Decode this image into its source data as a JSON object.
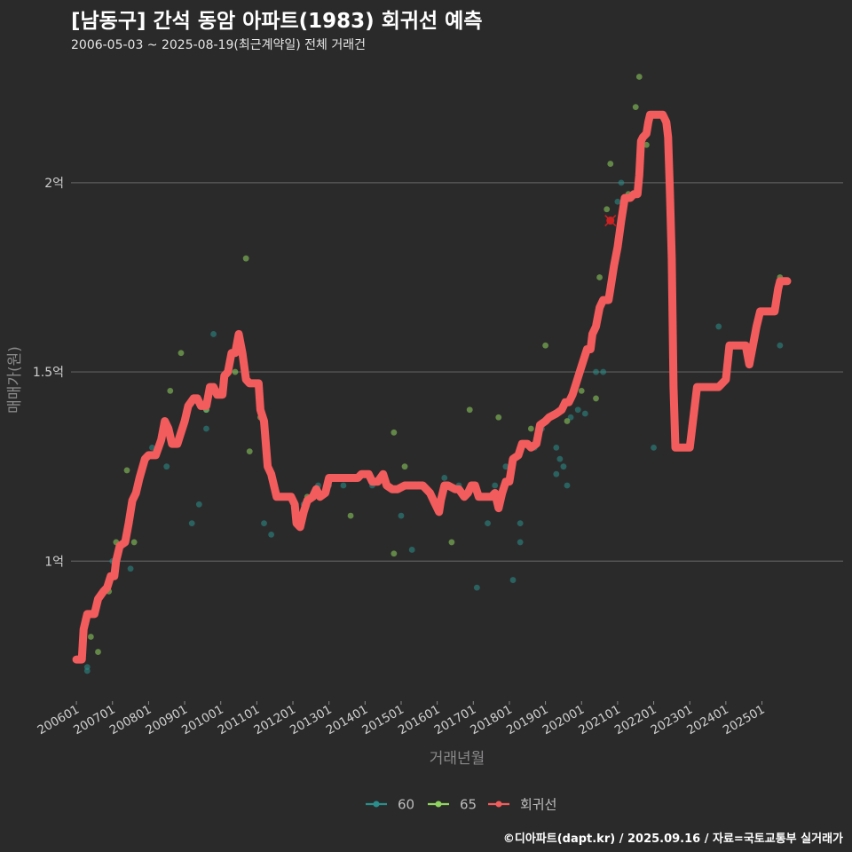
{
  "title": "[남동구] 간석 동암 아파트(1983) 회귀선 예측",
  "subtitle": "2006-05-03 ~ 2025-08-19(최근계약일) 전체 거래건",
  "footer": "©디아파트(dapt.kr) / 2025.09.16 / 자료=국토교통부 실거래가",
  "chart_data": {
    "type": "scatter",
    "xlabel": "거래년월",
    "ylabel": "매매가(원)",
    "x_ticks": [
      "200601",
      "200701",
      "200801",
      "200901",
      "201001",
      "201101",
      "201201",
      "201301",
      "201401",
      "201501",
      "201601",
      "201701",
      "201801",
      "201901",
      "202001",
      "202101",
      "202201",
      "202301",
      "202401",
      "202501"
    ],
    "y_ticks": [
      {
        "value": 1.0,
        "label": "1억"
      },
      {
        "value": 1.5,
        "label": "1.5억"
      },
      {
        "value": 2.0,
        "label": "2억"
      }
    ],
    "xlim": [
      2005.85,
      2027.25
    ],
    "ylim": [
      0.63,
      2.3
    ],
    "grid": true,
    "legend_position": "bottom",
    "colors": {
      "s60": "#2a8f8c",
      "s65": "#8fd45f",
      "regression": "#f25c5c",
      "grid": "#5e5e5e",
      "highlight": "#cc2222"
    },
    "series": [
      {
        "name": "60",
        "points": [
          [
            2006.3,
            0.72
          ],
          [
            2006.3,
            0.71
          ],
          [
            2007.0,
            1.0
          ],
          [
            2007.5,
            0.98
          ],
          [
            2008.1,
            1.3
          ],
          [
            2008.5,
            1.25
          ],
          [
            2009.2,
            1.1
          ],
          [
            2009.4,
            1.15
          ],
          [
            2009.6,
            1.35
          ],
          [
            2009.6,
            1.4
          ],
          [
            2009.8,
            1.6
          ],
          [
            2011.2,
            1.1
          ],
          [
            2011.4,
            1.07
          ],
          [
            2012.3,
            1.15
          ],
          [
            2012.7,
            1.2
          ],
          [
            2013.0,
            1.2
          ],
          [
            2013.4,
            1.2
          ],
          [
            2014.2,
            1.2
          ],
          [
            2015.0,
            1.12
          ],
          [
            2015.1,
            1.2
          ],
          [
            2015.3,
            1.03
          ],
          [
            2015.8,
            1.18
          ],
          [
            2016.2,
            1.22
          ],
          [
            2016.6,
            1.2
          ],
          [
            2017.1,
            0.93
          ],
          [
            2017.4,
            1.1
          ],
          [
            2017.6,
            1.2
          ],
          [
            2017.9,
            1.25
          ],
          [
            2018.1,
            0.95
          ],
          [
            2018.3,
            1.05
          ],
          [
            2018.3,
            1.1
          ],
          [
            2018.7,
            1.3
          ],
          [
            2018.9,
            1.35
          ],
          [
            2019.3,
            1.3
          ],
          [
            2019.3,
            1.23
          ],
          [
            2019.4,
            1.27
          ],
          [
            2019.5,
            1.25
          ],
          [
            2019.6,
            1.2
          ],
          [
            2019.7,
            1.38
          ],
          [
            2019.9,
            1.4
          ],
          [
            2020.1,
            1.39
          ],
          [
            2020.4,
            1.5
          ],
          [
            2020.6,
            1.5
          ],
          [
            2021.0,
            1.95
          ],
          [
            2021.1,
            2.0
          ],
          [
            2022.0,
            1.3
          ],
          [
            2023.0,
            1.3
          ],
          [
            2023.8,
            1.62
          ],
          [
            2025.5,
            1.57
          ]
        ]
      },
      {
        "name": "65",
        "points": [
          [
            2006.4,
            0.8
          ],
          [
            2006.6,
            0.76
          ],
          [
            2006.9,
            0.92
          ],
          [
            2007.1,
            1.05
          ],
          [
            2007.4,
            1.24
          ],
          [
            2007.6,
            1.05
          ],
          [
            2008.1,
            1.28
          ],
          [
            2008.6,
            1.45
          ],
          [
            2008.9,
            1.55
          ],
          [
            2009.6,
            1.4
          ],
          [
            2009.9,
            1.45
          ],
          [
            2010.4,
            1.5
          ],
          [
            2010.7,
            1.8
          ],
          [
            2010.8,
            1.29
          ],
          [
            2011.1,
            1.38
          ],
          [
            2012.4,
            1.17
          ],
          [
            2013.6,
            1.12
          ],
          [
            2014.0,
            1.23
          ],
          [
            2014.8,
            1.02
          ],
          [
            2014.8,
            1.34
          ],
          [
            2015.1,
            1.25
          ],
          [
            2016.4,
            1.05
          ],
          [
            2016.9,
            1.4
          ],
          [
            2017.7,
            1.38
          ],
          [
            2018.6,
            1.35
          ],
          [
            2019.0,
            1.57
          ],
          [
            2019.6,
            1.37
          ],
          [
            2020.0,
            1.45
          ],
          [
            2020.3,
            1.6
          ],
          [
            2020.4,
            1.43
          ],
          [
            2020.5,
            1.75
          ],
          [
            2020.7,
            1.93
          ],
          [
            2020.8,
            2.05
          ],
          [
            2021.0,
            1.85
          ],
          [
            2021.3,
            1.97
          ],
          [
            2021.5,
            2.2
          ],
          [
            2021.6,
            2.28
          ],
          [
            2021.8,
            2.1
          ],
          [
            2025.5,
            1.75
          ]
        ]
      },
      {
        "name": "회귀선",
        "points": [
          [
            2006.0,
            0.74
          ],
          [
            2006.15,
            0.74
          ],
          [
            2006.2,
            0.82
          ],
          [
            2006.3,
            0.86
          ],
          [
            2006.5,
            0.86
          ],
          [
            2006.6,
            0.9
          ],
          [
            2006.75,
            0.92
          ],
          [
            2006.85,
            0.93
          ],
          [
            2006.95,
            0.96
          ],
          [
            2007.05,
            0.96
          ],
          [
            2007.1,
            1.0
          ],
          [
            2007.2,
            1.04
          ],
          [
            2007.35,
            1.05
          ],
          [
            2007.45,
            1.1
          ],
          [
            2007.55,
            1.16
          ],
          [
            2007.65,
            1.18
          ],
          [
            2007.75,
            1.22
          ],
          [
            2007.9,
            1.27
          ],
          [
            2008.0,
            1.28
          ],
          [
            2008.2,
            1.28
          ],
          [
            2008.35,
            1.32
          ],
          [
            2008.45,
            1.37
          ],
          [
            2008.55,
            1.35
          ],
          [
            2008.65,
            1.31
          ],
          [
            2008.8,
            1.31
          ],
          [
            2008.9,
            1.34
          ],
          [
            2009.0,
            1.37
          ],
          [
            2009.1,
            1.41
          ],
          [
            2009.25,
            1.43
          ],
          [
            2009.35,
            1.43
          ],
          [
            2009.45,
            1.41
          ],
          [
            2009.6,
            1.41
          ],
          [
            2009.7,
            1.46
          ],
          [
            2009.8,
            1.46
          ],
          [
            2009.9,
            1.44
          ],
          [
            2010.05,
            1.44
          ],
          [
            2010.1,
            1.49
          ],
          [
            2010.2,
            1.5
          ],
          [
            2010.3,
            1.55
          ],
          [
            2010.4,
            1.55
          ],
          [
            2010.5,
            1.6
          ],
          [
            2010.6,
            1.55
          ],
          [
            2010.7,
            1.48
          ],
          [
            2010.8,
            1.47
          ],
          [
            2011.05,
            1.47
          ],
          [
            2011.1,
            1.4
          ],
          [
            2011.2,
            1.37
          ],
          [
            2011.3,
            1.25
          ],
          [
            2011.4,
            1.23
          ],
          [
            2011.55,
            1.17
          ],
          [
            2011.7,
            1.17
          ],
          [
            2011.95,
            1.17
          ],
          [
            2012.05,
            1.15
          ],
          [
            2012.1,
            1.1
          ],
          [
            2012.2,
            1.09
          ],
          [
            2012.3,
            1.13
          ],
          [
            2012.4,
            1.16
          ],
          [
            2012.55,
            1.17
          ],
          [
            2012.65,
            1.19
          ],
          [
            2012.75,
            1.17
          ],
          [
            2012.9,
            1.18
          ],
          [
            2013.0,
            1.22
          ],
          [
            2013.1,
            1.22
          ],
          [
            2013.3,
            1.22
          ],
          [
            2013.6,
            1.22
          ],
          [
            2013.8,
            1.22
          ],
          [
            2013.9,
            1.23
          ],
          [
            2014.1,
            1.23
          ],
          [
            2014.2,
            1.21
          ],
          [
            2014.35,
            1.21
          ],
          [
            2014.5,
            1.23
          ],
          [
            2014.6,
            1.2
          ],
          [
            2014.75,
            1.19
          ],
          [
            2014.9,
            1.19
          ],
          [
            2015.1,
            1.2
          ],
          [
            2015.3,
            1.2
          ],
          [
            2015.6,
            1.2
          ],
          [
            2015.8,
            1.18
          ],
          [
            2015.95,
            1.15
          ],
          [
            2016.05,
            1.13
          ],
          [
            2016.1,
            1.16
          ],
          [
            2016.2,
            1.2
          ],
          [
            2016.3,
            1.2
          ],
          [
            2016.5,
            1.19
          ],
          [
            2016.6,
            1.19
          ],
          [
            2016.75,
            1.17
          ],
          [
            2016.85,
            1.18
          ],
          [
            2016.95,
            1.2
          ],
          [
            2017.05,
            1.2
          ],
          [
            2017.15,
            1.17
          ],
          [
            2017.3,
            1.17
          ],
          [
            2017.5,
            1.17
          ],
          [
            2017.6,
            1.18
          ],
          [
            2017.7,
            1.14
          ],
          [
            2017.8,
            1.18
          ],
          [
            2017.9,
            1.21
          ],
          [
            2018.0,
            1.21
          ],
          [
            2018.1,
            1.27
          ],
          [
            2018.25,
            1.28
          ],
          [
            2018.35,
            1.31
          ],
          [
            2018.5,
            1.31
          ],
          [
            2018.6,
            1.3
          ],
          [
            2018.75,
            1.31
          ],
          [
            2018.85,
            1.36
          ],
          [
            2019.0,
            1.37
          ],
          [
            2019.1,
            1.38
          ],
          [
            2019.3,
            1.39
          ],
          [
            2019.45,
            1.4
          ],
          [
            2019.55,
            1.42
          ],
          [
            2019.65,
            1.42
          ],
          [
            2019.75,
            1.44
          ],
          [
            2019.85,
            1.47
          ],
          [
            2019.95,
            1.5
          ],
          [
            2020.05,
            1.53
          ],
          [
            2020.15,
            1.56
          ],
          [
            2020.25,
            1.56
          ],
          [
            2020.3,
            1.6
          ],
          [
            2020.4,
            1.62
          ],
          [
            2020.5,
            1.67
          ],
          [
            2020.6,
            1.69
          ],
          [
            2020.75,
            1.69
          ],
          [
            2020.8,
            1.72
          ],
          [
            2020.9,
            1.78
          ],
          [
            2021.0,
            1.83
          ],
          [
            2021.1,
            1.9
          ],
          [
            2021.2,
            1.96
          ],
          [
            2021.35,
            1.96
          ],
          [
            2021.45,
            1.97
          ],
          [
            2021.55,
            1.97
          ],
          [
            2021.6,
            2.02
          ],
          [
            2021.65,
            2.11
          ],
          [
            2021.7,
            2.12
          ],
          [
            2021.8,
            2.13
          ],
          [
            2021.85,
            2.16
          ],
          [
            2021.9,
            2.18
          ],
          [
            2022.25,
            2.18
          ],
          [
            2022.35,
            2.16
          ],
          [
            2022.4,
            2.12
          ],
          [
            2022.45,
            1.97
          ],
          [
            2022.5,
            1.8
          ],
          [
            2022.55,
            1.46
          ],
          [
            2022.6,
            1.3
          ],
          [
            2023.0,
            1.3
          ],
          [
            2023.1,
            1.38
          ],
          [
            2023.2,
            1.46
          ],
          [
            2023.5,
            1.46
          ],
          [
            2023.8,
            1.46
          ],
          [
            2024.0,
            1.48
          ],
          [
            2024.1,
            1.57
          ],
          [
            2024.3,
            1.57
          ],
          [
            2024.55,
            1.57
          ],
          [
            2024.65,
            1.52
          ],
          [
            2024.75,
            1.57
          ],
          [
            2024.85,
            1.62
          ],
          [
            2024.95,
            1.66
          ],
          [
            2025.35,
            1.66
          ],
          [
            2025.45,
            1.72
          ],
          [
            2025.5,
            1.74
          ],
          [
            2025.7,
            1.74
          ]
        ]
      }
    ],
    "highlight_point": [
      2020.8,
      1.9
    ]
  }
}
